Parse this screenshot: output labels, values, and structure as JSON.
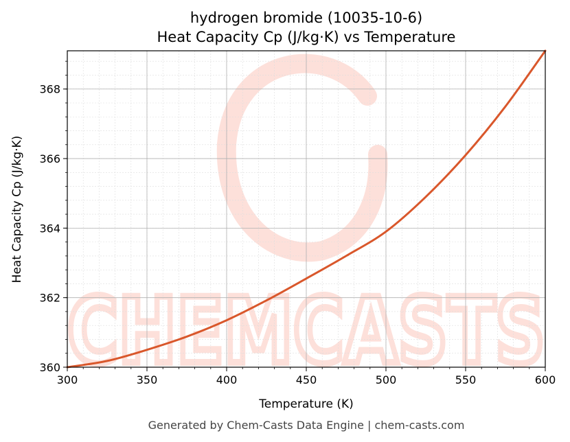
{
  "chart_data": {
    "type": "line",
    "title": "hydrogen bromide (10035-10-6)",
    "subtitle": "Heat Capacity Cp (J/kg·K) vs Temperature",
    "xlabel": "Temperature (K)",
    "ylabel": "Heat Capacity Cp (J/kg·K)",
    "xlim": [
      300,
      600
    ],
    "ylim": [
      360,
      369.1
    ],
    "xticks": [
      300,
      350,
      400,
      450,
      500,
      550,
      600
    ],
    "yticks": [
      360,
      362,
      364,
      366,
      368
    ],
    "grid": true,
    "line_color": "#d9572b",
    "x": [
      300,
      325,
      350,
      375,
      400,
      425,
      450,
      475,
      500,
      525,
      550,
      575,
      600
    ],
    "y": [
      360.0,
      360.18,
      360.5,
      360.88,
      361.35,
      361.92,
      362.55,
      363.2,
      363.9,
      364.9,
      366.1,
      367.5,
      369.1
    ]
  },
  "watermark": {
    "text": "CHEMCASTS",
    "color": "#fde0da"
  },
  "footer": "Generated by Chem-Casts Data Engine | chem-casts.com"
}
